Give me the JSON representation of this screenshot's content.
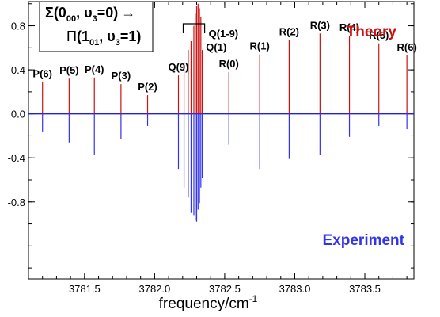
{
  "chart_data": {
    "type": "bar",
    "xlabel": "frequency/cm",
    "xlabel_superscript": "-1",
    "xlim": [
      3781.1,
      3783.85
    ],
    "ylim": [
      -1.5,
      1.02
    ],
    "x_ticks": [
      3781.5,
      3782.0,
      3782.5,
      3783.0,
      3783.5
    ],
    "x_tick_labels": [
      "3781.5",
      "3782.0",
      "3782.5",
      "3783.0",
      "3783.5"
    ],
    "y_ticks": [
      0.8,
      0.4,
      0.0,
      -0.4,
      -0.8
    ],
    "y_tick_labels": [
      "0.8",
      "0.4",
      "0.0",
      "-0.4",
      "-0.8"
    ],
    "zero_line_color": "#2222dd",
    "transition": {
      "line1": {
        "sigma": "Σ",
        "bold": "(0",
        "sub": "00",
        "mid": ", υ",
        "sub2": "3",
        "end": "=0)",
        "arrow": "→"
      },
      "line2": {
        "pi": "Π",
        "bold": "(1",
        "sub": "01",
        "mid": ", υ",
        "sub2": "3",
        "end": "=1)"
      }
    },
    "series": [
      {
        "name": "Theory",
        "color": "#cc1111",
        "sticks": [
          {
            "x": 3781.2,
            "y": 0.29
          },
          {
            "x": 3781.39,
            "y": 0.32
          },
          {
            "x": 3781.57,
            "y": 0.33
          },
          {
            "x": 3781.76,
            "y": 0.27
          },
          {
            "x": 3781.95,
            "y": 0.17
          },
          {
            "x": 3782.17,
            "y": 0.35
          },
          {
            "x": 3782.21,
            "y": 0.47
          },
          {
            "x": 3782.24,
            "y": 0.58
          },
          {
            "x": 3782.26,
            "y": 0.66
          },
          {
            "x": 3782.28,
            "y": 0.8
          },
          {
            "x": 3782.29,
            "y": 0.91
          },
          {
            "x": 3782.3,
            "y": 0.98
          },
          {
            "x": 3782.31,
            "y": 1.0
          },
          {
            "x": 3782.32,
            "y": 0.96
          },
          {
            "x": 3782.33,
            "y": 0.88
          },
          {
            "x": 3782.34,
            "y": 0.58
          },
          {
            "x": 3782.53,
            "y": 0.38
          },
          {
            "x": 3782.75,
            "y": 0.54
          },
          {
            "x": 3782.96,
            "y": 0.67
          },
          {
            "x": 3783.18,
            "y": 0.73
          },
          {
            "x": 3783.39,
            "y": 0.71
          },
          {
            "x": 3783.6,
            "y": 0.64
          },
          {
            "x": 3783.8,
            "y": 0.53
          }
        ]
      },
      {
        "name": "Experiment",
        "color": "#3333ee",
        "sticks": [
          {
            "x": 3781.2,
            "y": -0.16
          },
          {
            "x": 3781.39,
            "y": -0.26
          },
          {
            "x": 3781.57,
            "y": -0.37
          },
          {
            "x": 3781.76,
            "y": -0.23
          },
          {
            "x": 3781.95,
            "y": -0.11
          },
          {
            "x": 3782.17,
            "y": -0.5
          },
          {
            "x": 3782.21,
            "y": -0.67
          },
          {
            "x": 3782.24,
            "y": -0.76
          },
          {
            "x": 3782.26,
            "y": -0.9
          },
          {
            "x": 3782.28,
            "y": -0.92
          },
          {
            "x": 3782.29,
            "y": -0.97
          },
          {
            "x": 3782.3,
            "y": -0.98
          },
          {
            "x": 3782.31,
            "y": -0.87
          },
          {
            "x": 3782.32,
            "y": -0.81
          },
          {
            "x": 3782.33,
            "y": -0.67
          },
          {
            "x": 3782.34,
            "y": -0.58
          },
          {
            "x": 3782.53,
            "y": -0.28
          },
          {
            "x": 3782.75,
            "y": -0.5
          },
          {
            "x": 3782.96,
            "y": -0.41
          },
          {
            "x": 3783.18,
            "y": -0.37
          },
          {
            "x": 3783.39,
            "y": -0.21
          },
          {
            "x": 3783.6,
            "y": -0.11
          },
          {
            "x": 3783.8,
            "y": -0.14
          }
        ]
      }
    ],
    "peak_labels": [
      {
        "text": "P(6)",
        "x": 3781.2,
        "y": 0.29
      },
      {
        "text": "P(5)",
        "x": 3781.39,
        "y": 0.32
      },
      {
        "text": "P(4)",
        "x": 3781.57,
        "y": 0.33
      },
      {
        "text": "P(3)",
        "x": 3781.76,
        "y": 0.27
      },
      {
        "text": "P(2)",
        "x": 3781.95,
        "y": 0.17
      },
      {
        "text": "Q(9)",
        "x": 3782.17,
        "y": 0.35
      },
      {
        "text": "Q(1)",
        "x": 3782.44,
        "y": 0.53
      },
      {
        "text": "R(0)",
        "x": 3782.53,
        "y": 0.38
      },
      {
        "text": "R(1)",
        "x": 3782.75,
        "y": 0.54
      },
      {
        "text": "R(2)",
        "x": 3782.96,
        "y": 0.67
      },
      {
        "text": "R(3)",
        "x": 3783.18,
        "y": 0.73
      },
      {
        "text": "R(4)",
        "x": 3783.39,
        "y": 0.71
      },
      {
        "text": "R(5)",
        "x": 3783.6,
        "y": 0.64
      },
      {
        "text": "R(6)",
        "x": 3783.8,
        "y": 0.53
      }
    ],
    "bracket_label": "Q(1-9)",
    "bracket_range": [
      3782.17,
      3782.34
    ]
  }
}
